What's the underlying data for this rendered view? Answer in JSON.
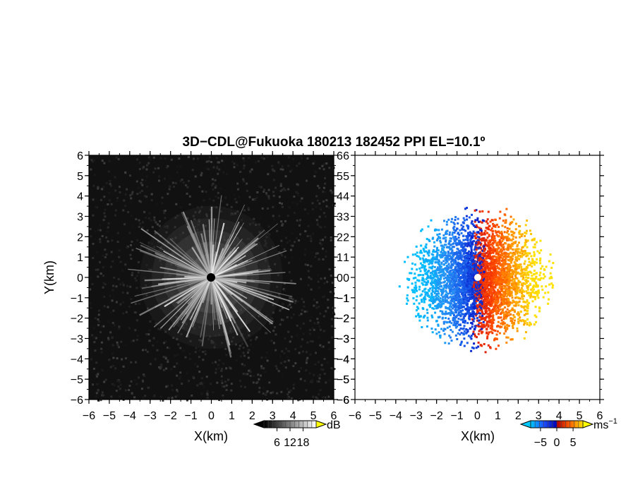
{
  "title": "3D−CDL@Fukuoka 180213 182452 PPI EL=10.1º",
  "chart_data": [
    {
      "type": "heatmap",
      "panel": "reflectivity",
      "title": "3D−CDL@Fukuoka 180213 182452 PPI EL=10.1º",
      "xlabel": "X(km)",
      "ylabel": "Y(km)",
      "xlim": [
        -6,
        6
      ],
      "ylim": [
        -6,
        6
      ],
      "xticks": [
        "−6",
        "−5",
        "−4",
        "−3",
        "−2",
        "−1",
        "0",
        "1",
        "2",
        "3",
        "4",
        "5",
        "6"
      ],
      "yticks": [
        "6",
        "5",
        "4",
        "3",
        "2",
        "1",
        "0",
        "−1",
        "−2",
        "−3",
        "−4",
        "−5",
        "−6"
      ],
      "colorbar": {
        "unit": "dB",
        "ticks": [
          "6",
          "12",
          "18"
        ],
        "range": [
          0,
          24
        ],
        "colormap": "grayscale"
      },
      "description_values": {
        "radar_center": [
          0,
          0
        ],
        "echo_radius_km": 3.5,
        "background_db": 4
      }
    },
    {
      "type": "heatmap",
      "panel": "doppler_velocity",
      "xlabel": "X(km)",
      "xlim": [
        -6,
        6
      ],
      "ylim": [
        -6,
        6
      ],
      "xticks": [
        "−6",
        "−5",
        "−4",
        "−3",
        "−2",
        "−1",
        "0",
        "1",
        "2",
        "3",
        "4",
        "5",
        "6"
      ],
      "yticks": [
        "6",
        "5",
        "4",
        "3",
        "2",
        "1",
        "0",
        "−1",
        "−2",
        "−3",
        "−4",
        "−5",
        "−6"
      ],
      "colorbar": {
        "unit": "ms",
        "unit_exponent": "−1",
        "ticks": [
          "−5",
          "0",
          "5"
        ],
        "range": [
          -8,
          8
        ],
        "colormap": "blue-red"
      },
      "description_values": {
        "radar_center": [
          0,
          0
        ],
        "echo_radius_km": 3.6,
        "flow_direction": "west-to-east"
      }
    }
  ],
  "colors": {
    "background": "#ffffff",
    "negative_strong": "#1530d0",
    "negative_weak": "#3ec6f0",
    "zero": "#e82a10",
    "positive_weak": "#ff8a00",
    "positive_strong": "#ffe000"
  }
}
